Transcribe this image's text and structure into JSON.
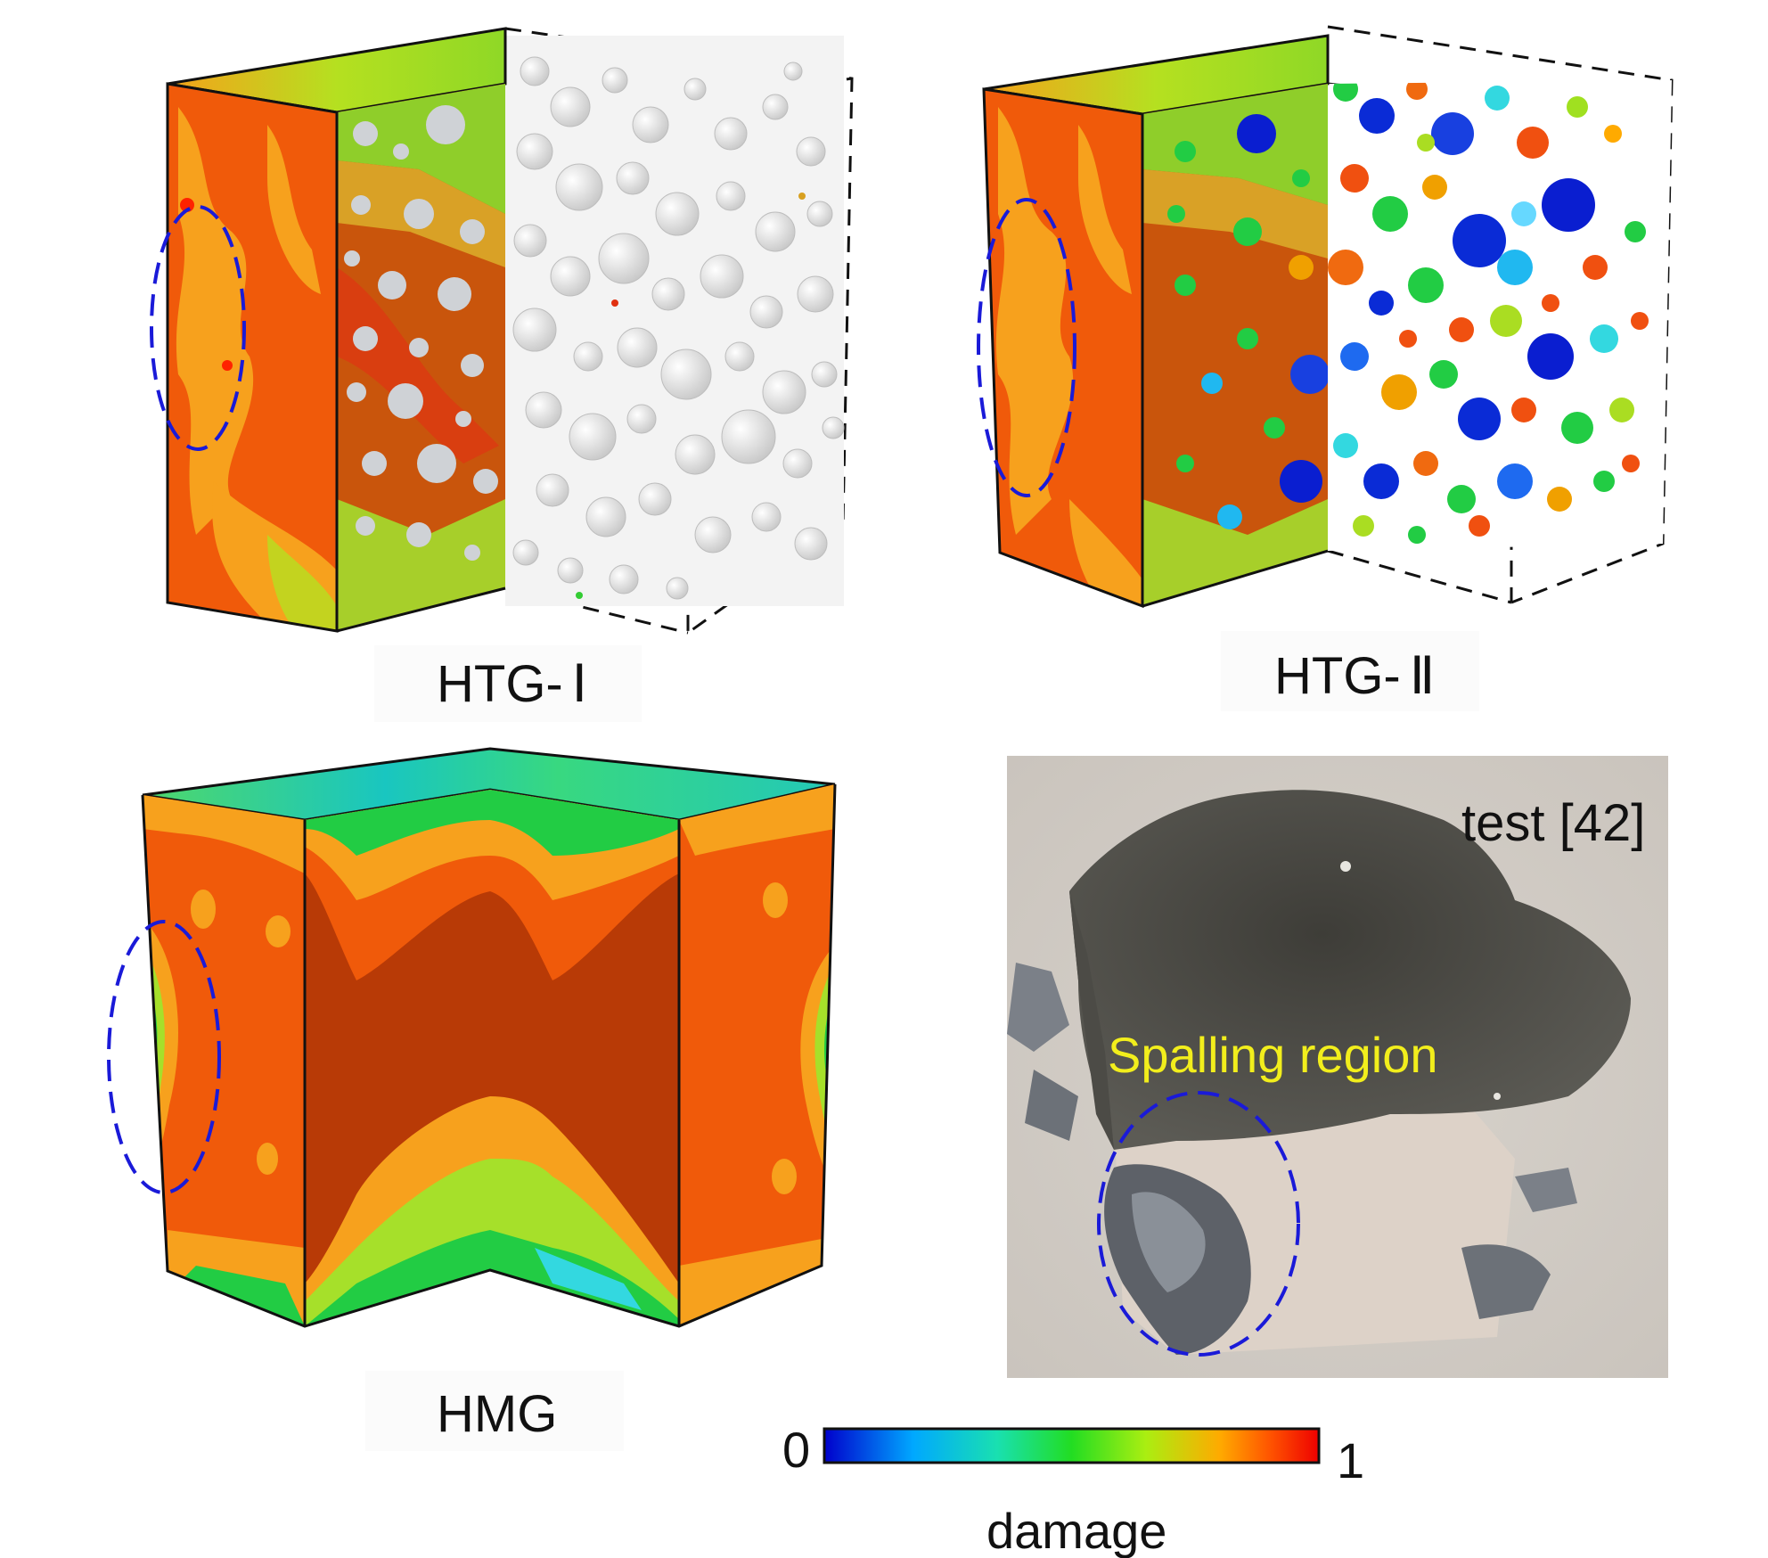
{
  "panels": {
    "htg1": {
      "label_prefix": "HTG-",
      "label_numeral": "Ⅰ"
    },
    "htg2": {
      "label_prefix": "HTG-",
      "label_numeral": "Ⅱ"
    },
    "hmg": {
      "label": "HMG"
    },
    "photo": {
      "source_label": "test [42]",
      "annotation": "Spalling region"
    }
  },
  "colorbar": {
    "min_label": "0",
    "max_label": "1",
    "title": "damage",
    "stops": [
      "#0000cc",
      "#00a8ff",
      "#19e0b0",
      "#22dd22",
      "#aaee11",
      "#ffaa00",
      "#ff5500",
      "#ee0000"
    ]
  },
  "colors": {
    "damage_high": "#f05a0a",
    "damage_peak": "#b83a06",
    "highlight_ellipse": "#1a1ad8",
    "annotation_text": "#f2ee1c"
  }
}
